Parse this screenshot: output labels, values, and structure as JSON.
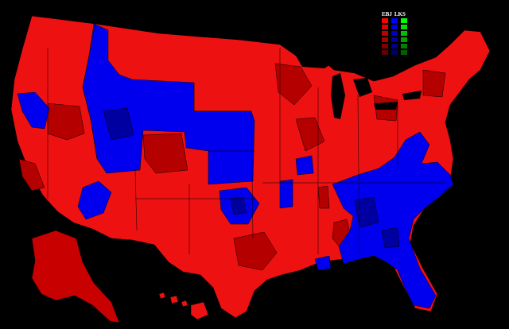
{
  "legend": {
    "title_left": "EBJ",
    "title_right": "LKS",
    "columns": [
      {
        "party": "red",
        "swatches": [
          "#ff0000",
          "#e00000",
          "#c00000",
          "#a00000",
          "#800000",
          "#600000"
        ]
      },
      {
        "party": "blue",
        "swatches": [
          "#0000ff",
          "#0000e0",
          "#0000c0",
          "#0000a0",
          "#000080",
          "#000060"
        ]
      },
      {
        "party": "green",
        "swatches": [
          "#00ff00",
          "#00e000",
          "#00c000",
          "#00a000",
          "#008000",
          "#006000"
        ]
      }
    ]
  },
  "colors": {
    "background": "#000000",
    "red_base": "#ee1111",
    "red_dark": "#b50000",
    "blue_base": "#0000ee",
    "blue_dark": "#0000a0",
    "border": "#000000"
  }
}
